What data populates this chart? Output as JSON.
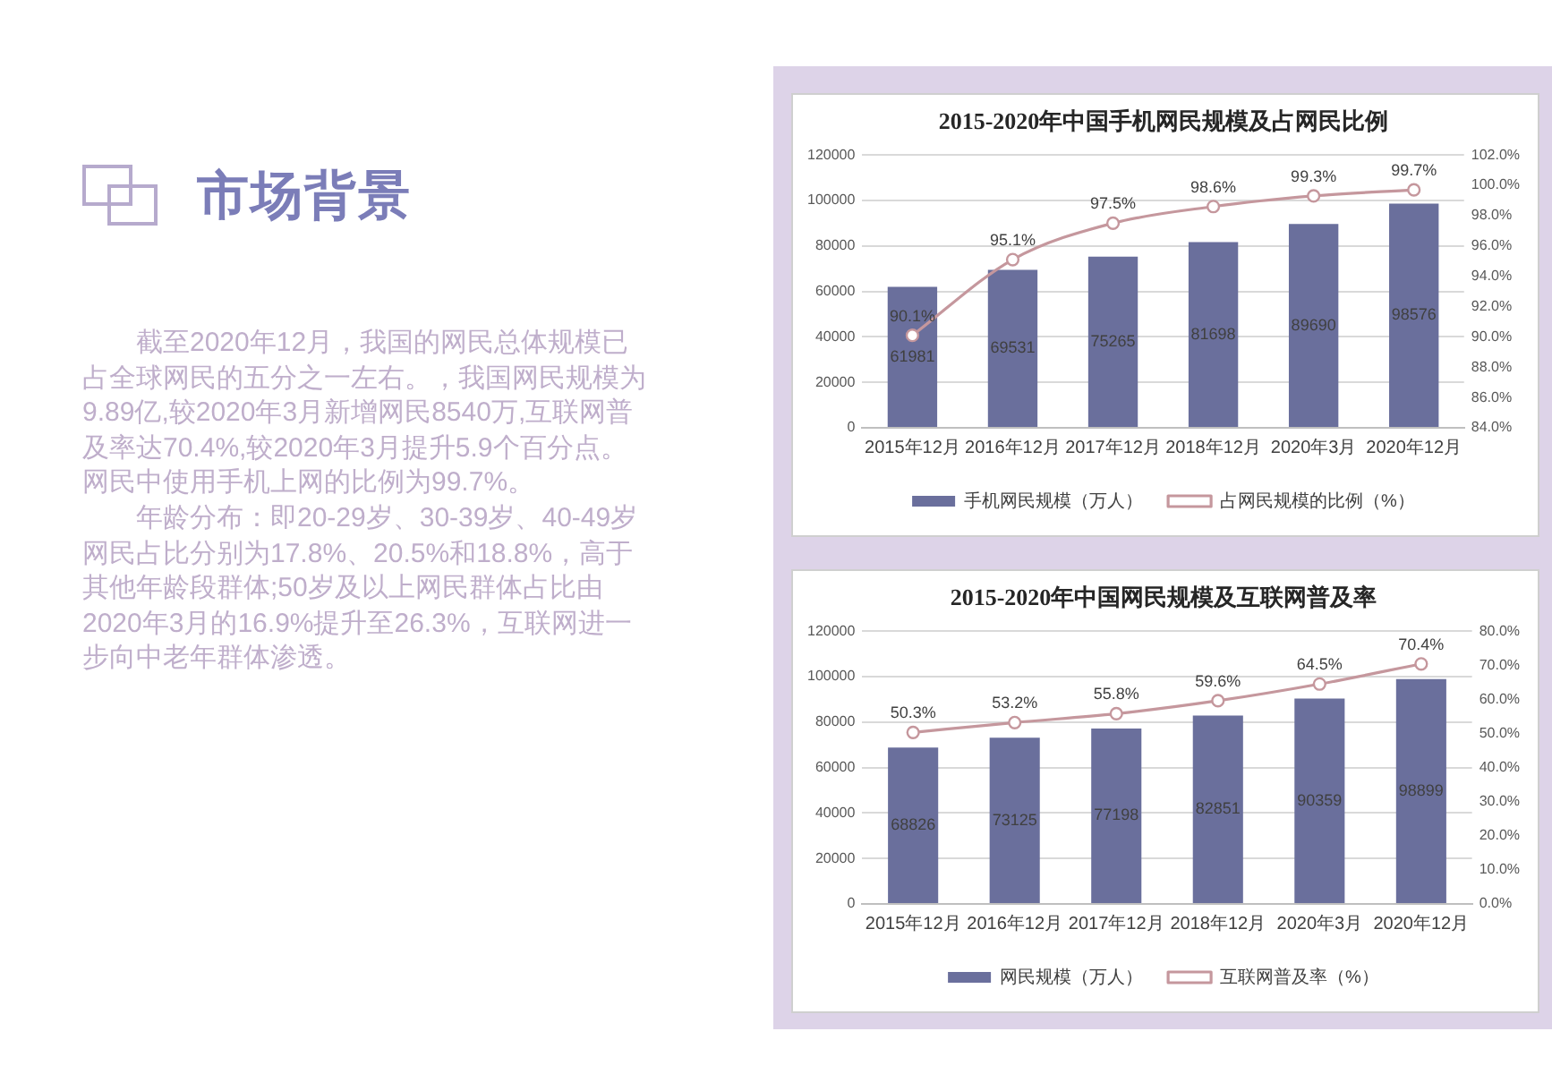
{
  "chart_data": [
    {
      "type": "other",
      "title": "市场背景",
      "annotations": [
        "截至2020年12月，我国的网民总体规模已占全球网民的五分之一左右。，我国网民规模为9.89亿,较2020年3月新增网民8540万,互联网普及率达70.4%,较2020年3月提升5.9个百分点。网民中使用手机上网的比例为99.7%。",
        "年龄分布：即20-29岁、30-39岁、40-49岁网民占比分别为17.8%、20.5%和18.8%，高于其他年龄段群体;50岁及以上网民群体占比由2020年3月的16.9%提升至26.3%，互联网进一步向中老年群体渗透。"
      ]
    },
    {
      "type": "bar",
      "title": "2015-2020年中国手机网民规模及占网民比例",
      "categories": [
        "2015年12月",
        "2016年12月",
        "2017年12月",
        "2018年12月",
        "2020年3月",
        "2020年12月"
      ],
      "series": [
        {
          "name": "手机网民规模（万人）",
          "color": "#6a6f9c",
          "values": [
            61981,
            69531,
            75265,
            81698,
            89690,
            98576
          ],
          "value_labels": [
            "61981",
            "69531",
            "75265",
            "81698",
            "89690",
            "98576"
          ]
        },
        {
          "name": "占网民规模的比例（%）",
          "type": "line",
          "axis": "y2",
          "marker": "circle",
          "color": "#c5979d",
          "values": [
            90.1,
            95.1,
            97.5,
            98.6,
            99.3,
            99.7
          ],
          "value_labels": [
            "90.1%",
            "95.1%",
            "97.5%",
            "98.6%",
            "99.3%",
            "99.7%"
          ]
        }
      ],
      "ylim": [
        0,
        120000
      ],
      "yticks": [
        0,
        20000,
        40000,
        60000,
        80000,
        100000,
        120000
      ],
      "y2lim": [
        84,
        102
      ],
      "y2ticks": [
        {
          "value": 84,
          "label": "84.0%"
        },
        {
          "value": 86,
          "label": "86.0%"
        },
        {
          "value": 88,
          "label": "88.0%"
        },
        {
          "value": 90,
          "label": "90.0%"
        },
        {
          "value": 92,
          "label": "92.0%"
        },
        {
          "value": 94,
          "label": "94.0%"
        },
        {
          "value": 96,
          "label": "96.0%"
        },
        {
          "value": 98,
          "label": "98.0%"
        },
        {
          "value": 100,
          "label": "100.0%"
        },
        {
          "value": 102,
          "label": "102.0%"
        }
      ],
      "grid": "y",
      "legend": "bottom"
    },
    {
      "type": "bar",
      "title": "2015-2020年中国网民规模及互联网普及率",
      "categories": [
        "2015年12月",
        "2016年12月",
        "2017年12月",
        "2018年12月",
        "2020年3月",
        "2020年12月"
      ],
      "series": [
        {
          "name": "网民规模（万人）",
          "color": "#6a6f9c",
          "values": [
            68826,
            73125,
            77198,
            82851,
            90359,
            98899
          ],
          "value_labels": [
            "68826",
            "73125",
            "77198",
            "82851",
            "90359",
            "98899"
          ]
        },
        {
          "name": "互联网普及率（%）",
          "type": "line",
          "axis": "y2",
          "marker": "circle",
          "color": "#c5979d",
          "values": [
            50.3,
            53.2,
            55.8,
            59.6,
            64.5,
            70.4
          ],
          "value_labels": [
            "50.3%",
            "53.2%",
            "55.8%",
            "59.6%",
            "64.5%",
            "70.4%"
          ]
        }
      ],
      "ylim": [
        0,
        120000
      ],
      "yticks": [
        0,
        20000,
        40000,
        60000,
        80000,
        100000,
        120000
      ],
      "y2lim": [
        0,
        80
      ],
      "y2ticks": [
        {
          "value": 0,
          "label": "0.0%"
        },
        {
          "value": 10,
          "label": "10.0%"
        },
        {
          "value": 20,
          "label": "20.0%"
        },
        {
          "value": 30,
          "label": "30.0%"
        },
        {
          "value": 40,
          "label": "40.0%"
        },
        {
          "value": 50,
          "label": "50.0%"
        },
        {
          "value": 60,
          "label": "60.0%"
        },
        {
          "value": 70,
          "label": "70.0%"
        },
        {
          "value": 80,
          "label": "80.0%"
        }
      ],
      "grid": "y",
      "legend": "bottom"
    }
  ]
}
